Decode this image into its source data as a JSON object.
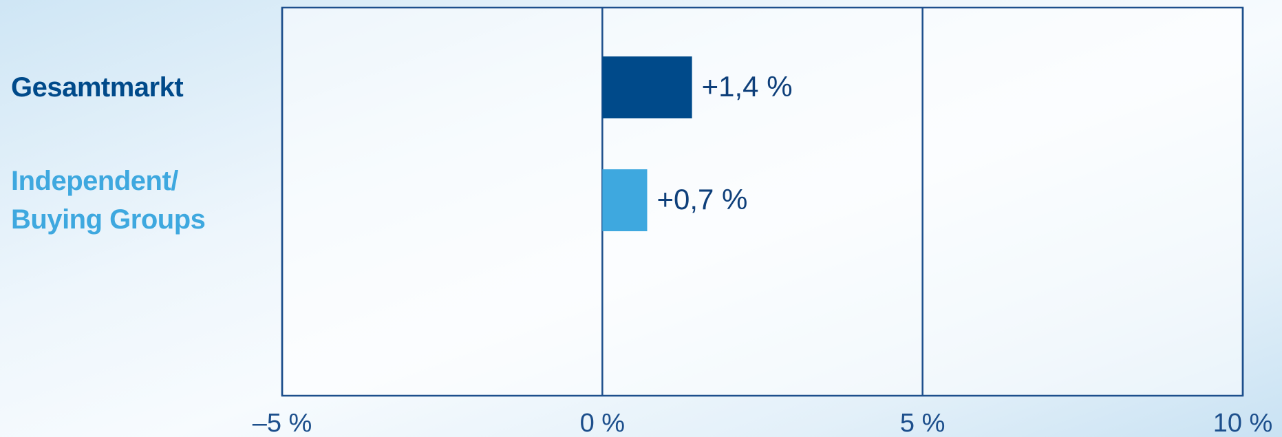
{
  "chart_data": {
    "type": "bar",
    "orientation": "horizontal",
    "categories": [
      "Gesamtmarkt",
      "Independent/\nBuying Groups"
    ],
    "values": [
      1.4,
      0.7
    ],
    "value_labels": [
      "+1,4 %",
      "+0,7 %"
    ],
    "colors": [
      "#004a8a",
      "#3ea8df"
    ],
    "xlim": [
      -5,
      10
    ],
    "xticks": [
      {
        "value": -5,
        "label": "–5 %"
      },
      {
        "value": 0,
        "label": "0 %"
      },
      {
        "value": 5,
        "label": "5 %"
      },
      {
        "value": 10,
        "label": "10 %"
      }
    ],
    "grid": true
  }
}
